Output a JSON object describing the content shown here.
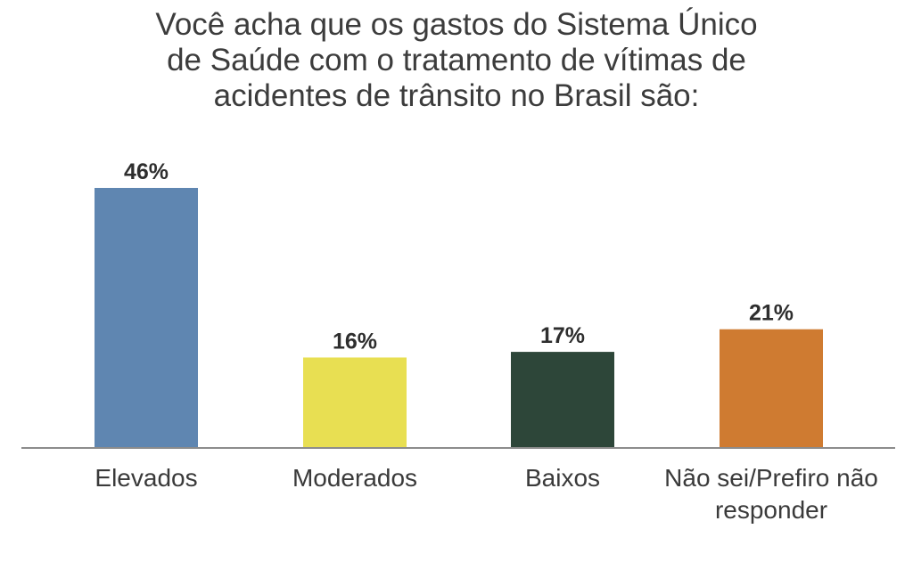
{
  "chart_data": {
    "type": "bar",
    "title_lines": [
      "Você acha que os gastos do Sistema Único",
      "de Saúde com o tratamento de vítimas de",
      "acidentes de trânsito no Brasil são:"
    ],
    "categories": [
      [
        "Elevados"
      ],
      [
        "Moderados"
      ],
      [
        "Baixos"
      ],
      [
        "Não sei/Prefiro não",
        "responder"
      ]
    ],
    "values": [
      46,
      16,
      17,
      21
    ],
    "value_labels": [
      "46%",
      "16%",
      "17%",
      "21%"
    ],
    "colors": [
      "#5f86b1",
      "#e8df52",
      "#2d4639",
      "#cf7b31"
    ],
    "xlabel": "",
    "ylabel": "",
    "ylim": [
      0,
      46
    ],
    "grid": false,
    "legend": "none"
  }
}
